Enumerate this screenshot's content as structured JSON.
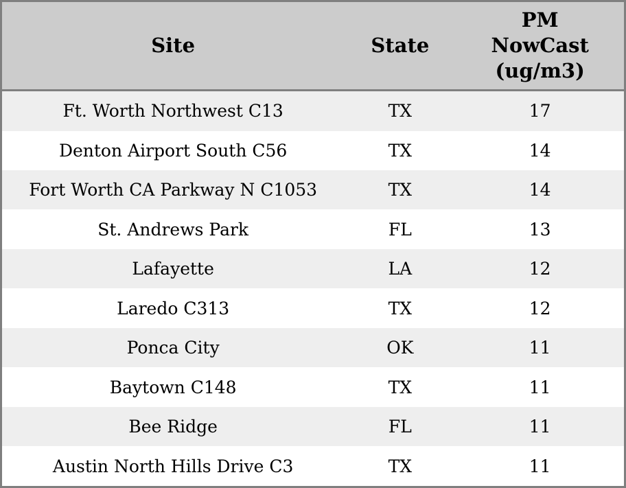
{
  "table": {
    "columns": [
      {
        "label": "Site"
      },
      {
        "label": "State"
      },
      {
        "label": "PM\nNowCast\n(ug/m3)"
      }
    ],
    "rows": [
      {
        "site": "Ft. Worth Northwest C13",
        "state": "TX",
        "pm_nowcast": "17"
      },
      {
        "site": "Denton Airport South C56",
        "state": "TX",
        "pm_nowcast": "14"
      },
      {
        "site": "Fort Worth CA Parkway N C1053",
        "state": "TX",
        "pm_nowcast": "14"
      },
      {
        "site": "St. Andrews Park",
        "state": "FL",
        "pm_nowcast": "13"
      },
      {
        "site": "Lafayette",
        "state": "LA",
        "pm_nowcast": "12"
      },
      {
        "site": "Laredo C313",
        "state": "TX",
        "pm_nowcast": "12"
      },
      {
        "site": "Ponca City",
        "state": "OK",
        "pm_nowcast": "11"
      },
      {
        "site": "Baytown C148",
        "state": "TX",
        "pm_nowcast": "11"
      },
      {
        "site": "Bee Ridge",
        "state": "FL",
        "pm_nowcast": "11"
      },
      {
        "site": "Austin North Hills Drive C3",
        "state": "TX",
        "pm_nowcast": "11"
      }
    ]
  },
  "colors": {
    "header_background": "#cccccc",
    "row_stripe": "#eeeeee",
    "row_plain": "#ffffff",
    "border": "#7f7f7f",
    "text": "#000000"
  },
  "chart_data": {
    "type": "table",
    "columns": [
      "Site",
      "State",
      "PM NowCast (ug/m3)"
    ],
    "rows": [
      [
        "Ft. Worth Northwest C13",
        "TX",
        17
      ],
      [
        "Denton Airport South C56",
        "TX",
        14
      ],
      [
        "Fort Worth CA Parkway N C1053",
        "TX",
        14
      ],
      [
        "St. Andrews Park",
        "FL",
        13
      ],
      [
        "Lafayette",
        "LA",
        12
      ],
      [
        "Laredo C313",
        "TX",
        12
      ],
      [
        "Ponca City",
        "OK",
        11
      ],
      [
        "Baytown C148",
        "TX",
        11
      ],
      [
        "Bee Ridge",
        "FL",
        11
      ],
      [
        "Austin North Hills Drive C3",
        "TX",
        11
      ]
    ]
  }
}
